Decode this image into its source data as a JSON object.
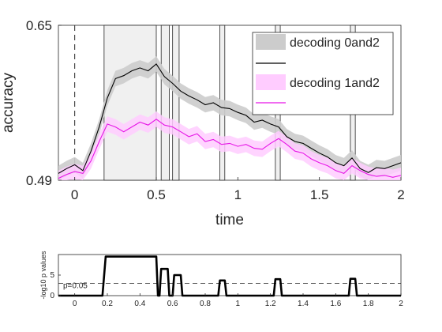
{
  "chart_data": [
    {
      "type": "line",
      "xlabel": "time",
      "ylabel": "accuracy",
      "xlim": [
        -0.1,
        2
      ],
      "ylim": [
        0.49,
        0.65
      ],
      "xticks": [
        "0",
        "0.5",
        "1",
        "1.5",
        "2"
      ],
      "yticks": [
        "0.49",
        "0.65"
      ],
      "legend_position": "top-right",
      "vertical_reference_line": {
        "x": 0,
        "style": "dashed"
      },
      "significance_windows": [
        [
          0.18,
          0.5
        ],
        [
          0.53,
          0.58
        ],
        [
          0.6,
          0.64
        ],
        [
          0.89,
          0.92
        ],
        [
          1.23,
          1.26
        ],
        [
          1.69,
          1.72
        ]
      ],
      "series": [
        {
          "name": "decoding 0and2",
          "color": "#000000",
          "band_color": "#cccccc",
          "x": [
            -0.1,
            -0.05,
            0,
            0.05,
            0.1,
            0.15,
            0.2,
            0.25,
            0.3,
            0.35,
            0.4,
            0.45,
            0.5,
            0.55,
            0.6,
            0.65,
            0.7,
            0.75,
            0.8,
            0.85,
            0.9,
            0.95,
            1.0,
            1.05,
            1.1,
            1.15,
            1.2,
            1.25,
            1.3,
            1.35,
            1.4,
            1.45,
            1.5,
            1.55,
            1.6,
            1.65,
            1.7,
            1.75,
            1.8,
            1.85,
            1.9,
            1.95,
            2.0
          ],
          "values": [
            0.497,
            0.502,
            0.506,
            0.5,
            0.52,
            0.545,
            0.575,
            0.595,
            0.598,
            0.603,
            0.606,
            0.603,
            0.61,
            0.597,
            0.59,
            0.582,
            0.577,
            0.573,
            0.568,
            0.57,
            0.565,
            0.564,
            0.56,
            0.557,
            0.55,
            0.552,
            0.548,
            0.545,
            0.535,
            0.53,
            0.528,
            0.523,
            0.518,
            0.514,
            0.508,
            0.505,
            0.513,
            0.502,
            0.498,
            0.503,
            0.502,
            0.505,
            0.508
          ],
          "errors": [
            0.008,
            0.008,
            0.008,
            0.008,
            0.008,
            0.008,
            0.008,
            0.008,
            0.008,
            0.008,
            0.008,
            0.008,
            0.008,
            0.008,
            0.008,
            0.008,
            0.008,
            0.008,
            0.008,
            0.008,
            0.008,
            0.008,
            0.008,
            0.008,
            0.008,
            0.008,
            0.008,
            0.008,
            0.008,
            0.008,
            0.008,
            0.008,
            0.008,
            0.008,
            0.008,
            0.008,
            0.008,
            0.008,
            0.008,
            0.008,
            0.008,
            0.008,
            0.008
          ]
        },
        {
          "name": "decoding 1and2",
          "color": "#e614e6",
          "band_color": "#ffccff",
          "x": [
            -0.1,
            -0.05,
            0,
            0.05,
            0.1,
            0.15,
            0.2,
            0.25,
            0.3,
            0.35,
            0.4,
            0.45,
            0.5,
            0.55,
            0.6,
            0.65,
            0.7,
            0.75,
            0.8,
            0.85,
            0.9,
            0.95,
            1.0,
            1.05,
            1.1,
            1.15,
            1.2,
            1.25,
            1.3,
            1.35,
            1.4,
            1.45,
            1.5,
            1.55,
            1.6,
            1.65,
            1.7,
            1.75,
            1.8,
            1.85,
            1.9,
            1.95,
            2.0
          ],
          "values": [
            0.492,
            0.496,
            0.499,
            0.497,
            0.51,
            0.53,
            0.548,
            0.545,
            0.54,
            0.545,
            0.55,
            0.547,
            0.553,
            0.547,
            0.545,
            0.54,
            0.535,
            0.538,
            0.53,
            0.532,
            0.527,
            0.528,
            0.525,
            0.527,
            0.523,
            0.522,
            0.528,
            0.533,
            0.527,
            0.52,
            0.518,
            0.512,
            0.508,
            0.505,
            0.5,
            0.497,
            0.505,
            0.5,
            0.496,
            0.494,
            0.495,
            0.493,
            0.495
          ],
          "errors": [
            0.008,
            0.008,
            0.008,
            0.008,
            0.008,
            0.008,
            0.008,
            0.008,
            0.008,
            0.008,
            0.008,
            0.008,
            0.008,
            0.008,
            0.008,
            0.008,
            0.008,
            0.008,
            0.008,
            0.008,
            0.008,
            0.008,
            0.008,
            0.008,
            0.008,
            0.008,
            0.008,
            0.008,
            0.008,
            0.008,
            0.008,
            0.008,
            0.008,
            0.008,
            0.008,
            0.008,
            0.008,
            0.008,
            0.008,
            0.008,
            0.008,
            0.008,
            0.008
          ]
        }
      ]
    },
    {
      "type": "line",
      "xlabel": "",
      "ylabel": "-log10 p values",
      "xlim": [
        -0.1,
        2
      ],
      "ylim": [
        0,
        10
      ],
      "xticks": [
        "0",
        "0.2",
        "0.4",
        "0.6",
        "0.8",
        "1",
        "1.2",
        "1.4",
        "1.6",
        "1.8",
        "2"
      ],
      "yticks": [
        "0",
        "5"
      ],
      "threshold": {
        "value": 3,
        "label": "p=0.05",
        "style": "dashed"
      },
      "series": [
        {
          "color": "#000000",
          "x": [
            -0.1,
            0.17,
            0.19,
            0.5,
            0.51,
            0.52,
            0.53,
            0.57,
            0.58,
            0.6,
            0.61,
            0.65,
            0.66,
            0.88,
            0.89,
            0.92,
            0.93,
            1.22,
            1.23,
            1.26,
            1.27,
            1.68,
            1.69,
            1.72,
            1.73,
            2.0
          ],
          "values": [
            0,
            0,
            9.5,
            9.5,
            0,
            0,
            6.5,
            6.5,
            0,
            0,
            5,
            5,
            0,
            0,
            3.7,
            3.7,
            0,
            0,
            4,
            4,
            0,
            0,
            4.1,
            4.1,
            0,
            0
          ]
        }
      ]
    }
  ]
}
